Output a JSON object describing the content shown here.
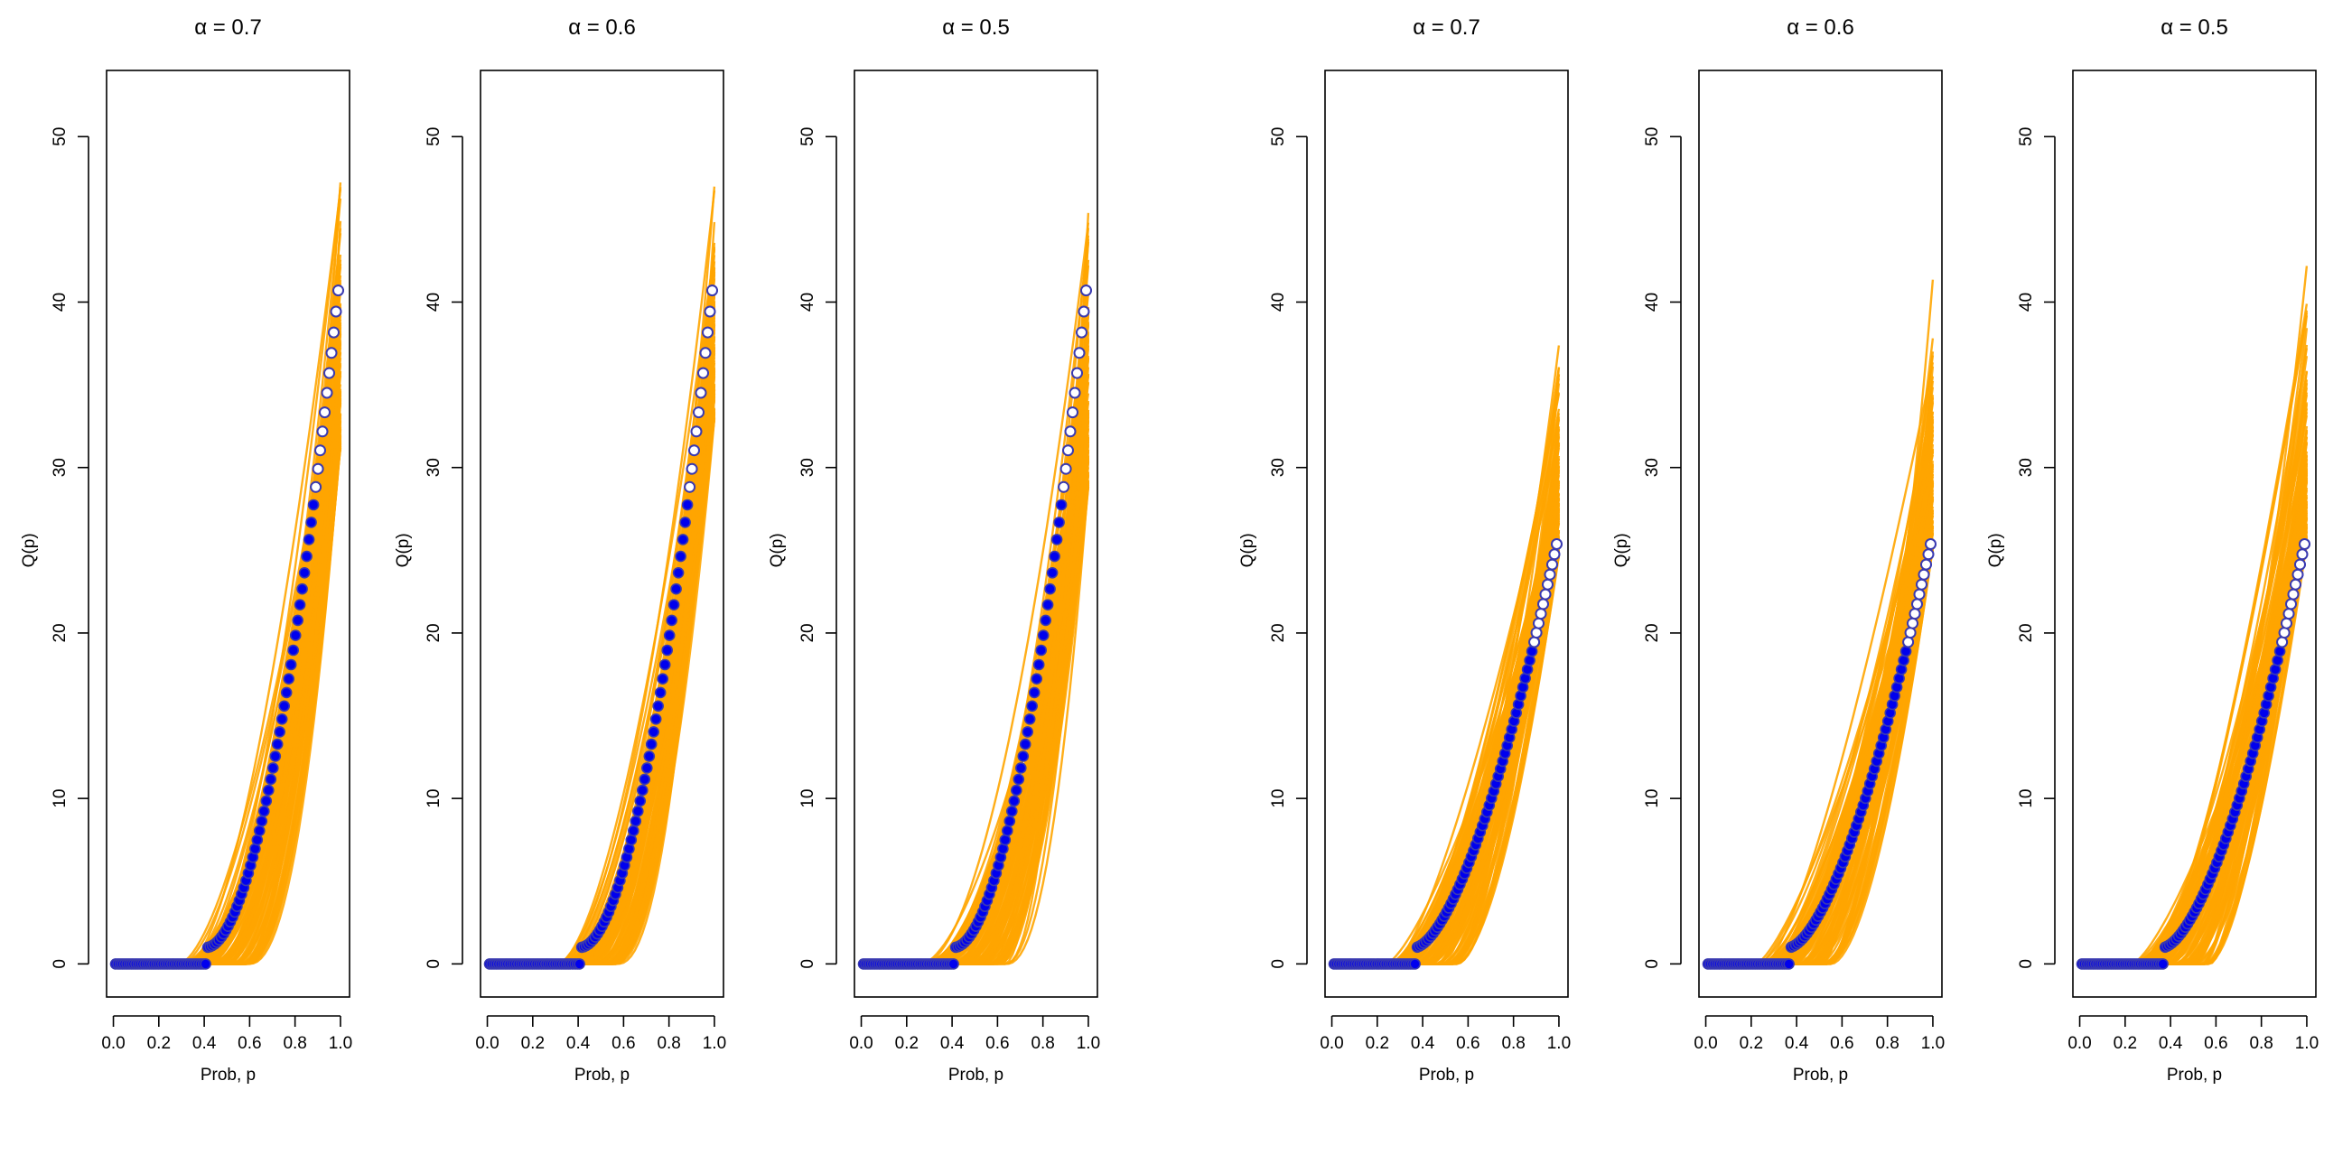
{
  "colors": {
    "simulation_band": "#FFA500",
    "observed_points": "#0000EE",
    "point_outline": "#3a3ab0",
    "axis": "#000000",
    "background": "#FFFFFF"
  },
  "chart_data": [
    {
      "type": "line",
      "title": "α = 0.7",
      "xlabel": "Prob, p",
      "ylabel": "Q(p)",
      "xlim": [
        -0.03,
        1.04
      ],
      "ylim": [
        -2,
        54
      ],
      "xticks": [
        0.0,
        0.2,
        0.4,
        0.6,
        0.8,
        1.0
      ],
      "xtick_labels": [
        "0.0",
        "0.2",
        "0.4",
        "0.6",
        "0.8",
        "1.0"
      ],
      "yticks": [
        0,
        10,
        20,
        30,
        40,
        50
      ],
      "ytick_labels": [
        "0",
        "10",
        "20",
        "30",
        "40",
        "50"
      ],
      "grid": false,
      "observed": {
        "zero_until": 0.41,
        "start_value": 1.0,
        "max_value": 42.0,
        "shape_exponent": 1.9
      },
      "envelope": {
        "lower": {
          "zero_until": 0.6,
          "max_value": 28.0
        },
        "upper": {
          "zero_until": 0.28,
          "max_value": 49.0
        }
      }
    },
    {
      "type": "line",
      "title": "α = 0.6",
      "xlabel": "Prob, p",
      "ylabel": "Q(p)",
      "xlim": [
        -0.03,
        1.04
      ],
      "ylim": [
        -2,
        54
      ],
      "xticks": [
        0.0,
        0.2,
        0.4,
        0.6,
        0.8,
        1.0
      ],
      "xtick_labels": [
        "0.0",
        "0.2",
        "0.4",
        "0.6",
        "0.8",
        "1.0"
      ],
      "yticks": [
        0,
        10,
        20,
        30,
        40,
        50
      ],
      "ytick_labels": [
        "0",
        "10",
        "20",
        "30",
        "40",
        "50"
      ],
      "grid": false,
      "observed": {
        "zero_until": 0.41,
        "start_value": 1.0,
        "max_value": 42.0,
        "shape_exponent": 1.9
      },
      "envelope": {
        "lower": {
          "zero_until": 0.58,
          "max_value": 30.0
        },
        "upper": {
          "zero_until": 0.3,
          "max_value": 49.0
        }
      }
    },
    {
      "type": "line",
      "title": "α = 0.5",
      "xlabel": "Prob, p",
      "ylabel": "Q(p)",
      "xlim": [
        -0.03,
        1.04
      ],
      "ylim": [
        -2,
        54
      ],
      "xticks": [
        0.0,
        0.2,
        0.4,
        0.6,
        0.8,
        1.0
      ],
      "xtick_labels": [
        "0.0",
        "0.2",
        "0.4",
        "0.6",
        "0.8",
        "1.0"
      ],
      "yticks": [
        0,
        10,
        20,
        30,
        40,
        50
      ],
      "ytick_labels": [
        "0",
        "10",
        "20",
        "30",
        "40",
        "50"
      ],
      "grid": false,
      "observed": {
        "zero_until": 0.41,
        "start_value": 1.0,
        "max_value": 42.0,
        "shape_exponent": 1.9
      },
      "envelope": {
        "lower": {
          "zero_until": 0.64,
          "max_value": 25.0
        },
        "upper": {
          "zero_until": 0.26,
          "max_value": 50.5
        }
      }
    },
    {
      "type": "line",
      "title": "α = 0.7",
      "xlabel": "Prob, p",
      "ylabel": "Q(p)",
      "xlim": [
        -0.03,
        1.04
      ],
      "ylim": [
        -2,
        54
      ],
      "xticks": [
        0.0,
        0.2,
        0.4,
        0.6,
        0.8,
        1.0
      ],
      "xtick_labels": [
        "0.0",
        "0.2",
        "0.4",
        "0.6",
        "0.8",
        "1.0"
      ],
      "yticks": [
        0,
        10,
        20,
        30,
        40,
        50
      ],
      "ytick_labels": [
        "0",
        "10",
        "20",
        "30",
        "40",
        "50"
      ],
      "grid": false,
      "observed": {
        "zero_until": 0.37,
        "start_value": 1.0,
        "max_value": 26.0,
        "shape_exponent": 1.6
      },
      "envelope": {
        "lower": {
          "zero_until": 0.56,
          "max_value": 22.0
        },
        "upper": {
          "zero_until": 0.24,
          "max_value": 38.5
        }
      }
    },
    {
      "type": "line",
      "title": "α = 0.6",
      "xlabel": "Prob, p",
      "ylabel": "Q(p)",
      "xlim": [
        -0.03,
        1.04
      ],
      "ylim": [
        -2,
        54
      ],
      "xticks": [
        0.0,
        0.2,
        0.4,
        0.6,
        0.8,
        1.0
      ],
      "xtick_labels": [
        "0.0",
        "0.2",
        "0.4",
        "0.6",
        "0.8",
        "1.0"
      ],
      "yticks": [
        0,
        10,
        20,
        30,
        40,
        50
      ],
      "ytick_labels": [
        "0",
        "10",
        "20",
        "30",
        "40",
        "50"
      ],
      "grid": false,
      "observed": {
        "zero_until": 0.37,
        "start_value": 1.0,
        "max_value": 26.0,
        "shape_exponent": 1.6
      },
      "envelope": {
        "lower": {
          "zero_until": 0.56,
          "max_value": 22.0
        },
        "upper": {
          "zero_until": 0.22,
          "max_value": 42.0
        }
      }
    },
    {
      "type": "line",
      "title": "α = 0.5",
      "xlabel": "Prob, p",
      "ylabel": "Q(p)",
      "xlim": [
        -0.03,
        1.04
      ],
      "ylim": [
        -2,
        54
      ],
      "xticks": [
        0.0,
        0.2,
        0.4,
        0.6,
        0.8,
        1.0
      ],
      "xtick_labels": [
        "0.0",
        "0.2",
        "0.4",
        "0.6",
        "0.8",
        "1.0"
      ],
      "yticks": [
        0,
        10,
        20,
        30,
        40,
        50
      ],
      "ytick_labels": [
        "0",
        "10",
        "20",
        "30",
        "40",
        "50"
      ],
      "grid": false,
      "observed": {
        "zero_until": 0.37,
        "start_value": 1.0,
        "max_value": 26.0,
        "shape_exponent": 1.6
      },
      "envelope": {
        "lower": {
          "zero_until": 0.58,
          "max_value": 22.0
        },
        "upper": {
          "zero_until": 0.22,
          "max_value": 44.0
        }
      }
    }
  ]
}
